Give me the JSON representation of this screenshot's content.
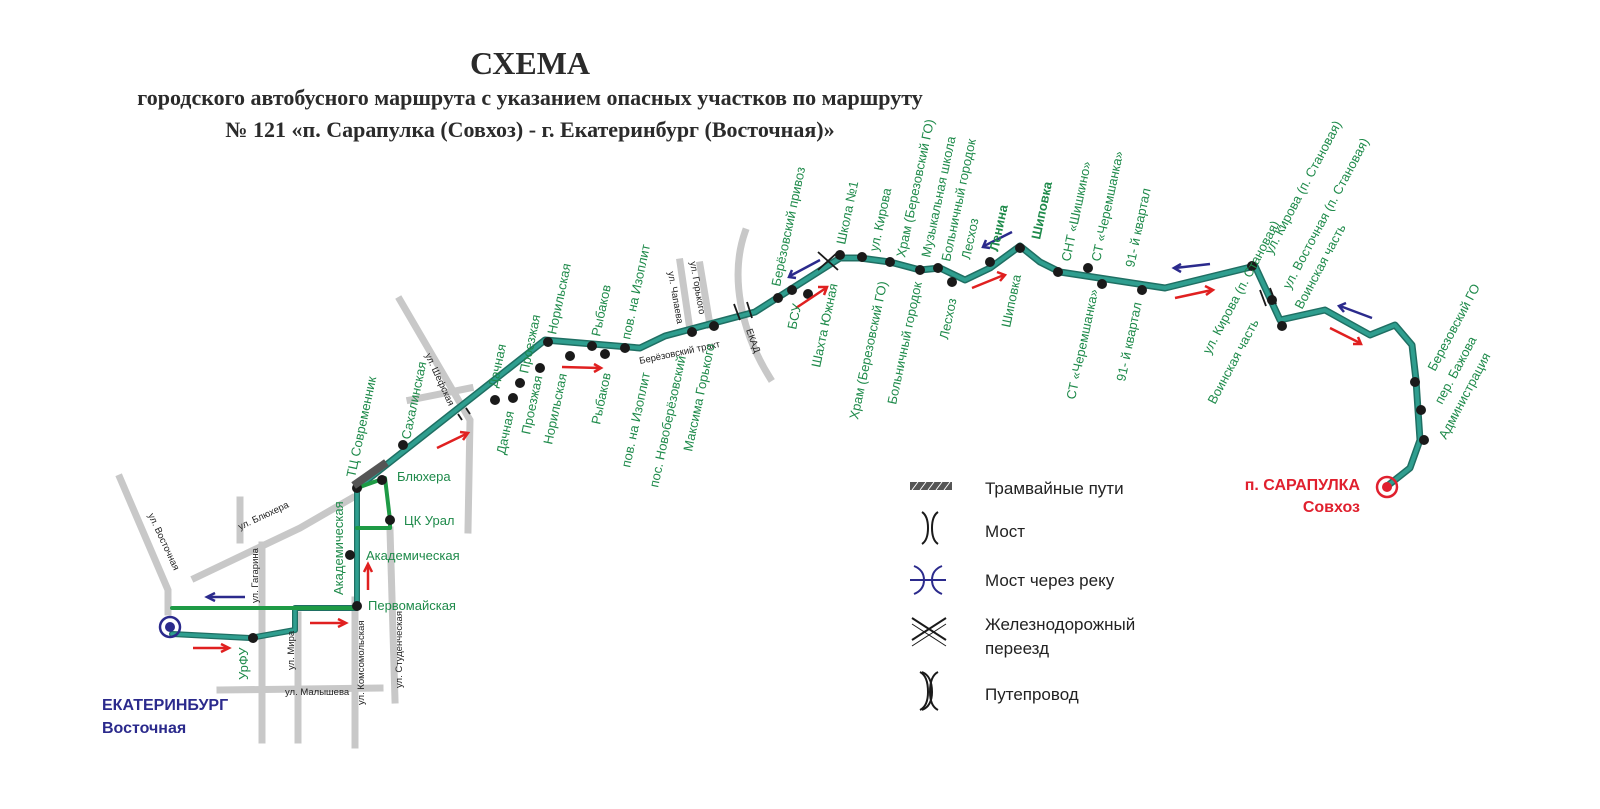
{
  "title": {
    "line1": "СХЕМА",
    "line2": "городского автобусного маршрута с указанием опасных участков по маршруту",
    "line3": "№ 121 «п. Сарапулка (Совхоз) - г. Екатеринбург (Восточная)»"
  },
  "colors": {
    "route": "#2f9e8f",
    "route_outline": "#1f6f63",
    "branch": "#1e9a45",
    "street": "#c8c8c8",
    "stop": "#1a1a1a",
    "label_green": "#1e8a4a",
    "arrow_forward": "#e02020",
    "arrow_back": "#2b2a8c",
    "start_terminal": "#2b2a8c",
    "end_terminal": "#e0202e"
  },
  "terminals": {
    "start": {
      "name": "ЕКАТЕРИНБУРГ",
      "sub": "Восточная"
    },
    "end": {
      "name": "п. САРАПУЛКА",
      "sub": "Совхоз"
    }
  },
  "streets": {
    "vostochnaya": "ул. Восточная",
    "blyukhera": "ул. Блюхера",
    "gagarina": "ул. Гагарина",
    "mira": "ул. Мира",
    "komsomolskaya": "ул. Комсомольская",
    "studencheskaya": "ул. Студенческая",
    "malysheva": "ул. Малышева",
    "shefskaya": "ул. Шефская",
    "berezovsky_trakt": "Берёзовский тракт",
    "chapaeva": "ул. Чапаева",
    "gorkogo": "ул. Горького",
    "ekad": "ЕКАД"
  },
  "stops_upper": [
    "ТЦ Современник",
    "Сахалинская",
    "Дачная",
    "Проезжая",
    "Норильская",
    "Рыбаков",
    "пов. на Изоплит",
    "Берёзовский привоз",
    "Школа №1",
    "ул. Кирова",
    "Храм (Березовский ГО)",
    "Музыкальная школа",
    "Больничный городок",
    "Лесхоз",
    "Ленина",
    "Шиповка",
    "СНТ «Шишкино»",
    "СТ «Черемшанка»",
    "91- й квартал",
    "ул. Кирова (п. Становая)",
    "ул. Восточная (п. Становая)",
    "Воинская часть",
    "Березовский ГО",
    "пер. Бажова",
    "Администрация"
  ],
  "stops_lower": [
    "Дачная",
    "Проезжая",
    "Норильская",
    "Рыбаков",
    "пов. на Изоплит",
    "пос. Новоберёзовский",
    "Максима Горького",
    "БСУ",
    "Шахта Южная",
    "Храм (Березовский ГО)",
    "Больничный городок",
    "Лесхоз",
    "Шиповка",
    "СТ «Черемшанка»",
    "91- й квартал",
    "ул. Кирова (п. Становая)",
    "Воинская часть"
  ],
  "stops_city": [
    "Блюхера",
    "ЦК Урал",
    "Академическая",
    "Первомайская",
    "Академическая",
    "УрФУ"
  ],
  "legend": [
    {
      "icon": "tram-tracks",
      "label": "Трамвайные пути"
    },
    {
      "icon": "bridge",
      "label": "Мост"
    },
    {
      "icon": "river-bridge",
      "label": "Мост через реку"
    },
    {
      "icon": "railway-crossing",
      "label": "Железнодорожный переезд"
    },
    {
      "icon": "overpass",
      "label": "Путепровод"
    }
  ],
  "legend_lines": {
    "railway_line1": "Железнодорожный",
    "railway_line2": "переезд"
  }
}
